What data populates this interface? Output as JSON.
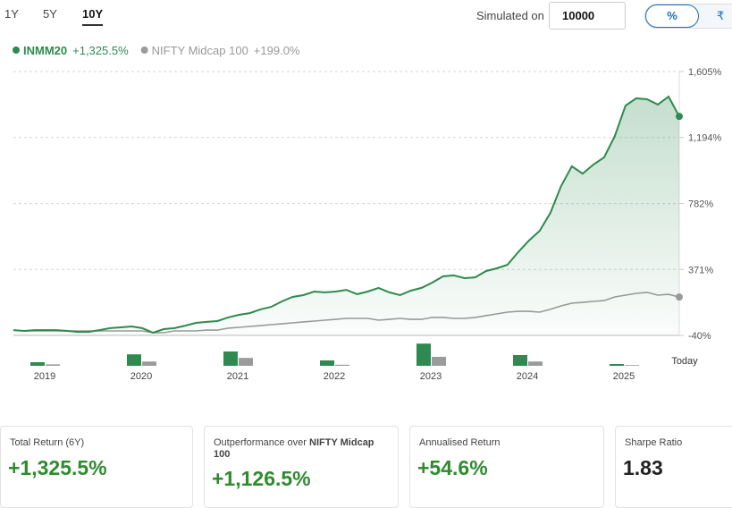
{
  "range_tabs": {
    "items": [
      "1Y",
      "5Y",
      "10Y"
    ],
    "selected": "10Y"
  },
  "simulation": {
    "label": "Simulated on",
    "amount": "10000",
    "modes": [
      "%",
      "₹"
    ],
    "selected_mode": "%"
  },
  "chart_data": [
    {
      "type": "line",
      "ylim": [
        -40,
        1605
      ],
      "yticks": [
        {
          "value": 1605,
          "label": "1,605%"
        },
        {
          "value": 1194,
          "label": "1,194%"
        },
        {
          "value": 782,
          "label": "782%"
        },
        {
          "value": 371,
          "label": "371%"
        },
        {
          "value": -40,
          "label": "-40%"
        }
      ],
      "grid": true,
      "series": [
        {
          "name": "INMM20",
          "color": "#2f8a4f",
          "value_label": "+1,325.5%",
          "area": true,
          "values": [
            -7,
            -12,
            -7,
            -7,
            -7,
            -12,
            -18,
            -18,
            -7,
            5,
            10,
            16,
            5,
            -23,
            -1,
            5,
            21,
            38,
            44,
            49,
            72,
            88,
            99,
            122,
            138,
            172,
            200,
            211,
            233,
            228,
            233,
            244,
            217,
            233,
            256,
            228,
            211,
            239,
            256,
            289,
            328,
            334,
            317,
            322,
            361,
            378,
            400,
            479,
            551,
            612,
            724,
            891,
            1014,
            969,
            1025,
            1070,
            1203,
            1393,
            1438,
            1432,
            1399,
            1449,
            1325.5
          ]
        },
        {
          "name": "NIFTY Midcap 100",
          "color": "#9b9b9b",
          "value_label": "+199.0%",
          "area": false,
          "values": [
            -7,
            -12,
            -12,
            -12,
            -12,
            -12,
            -12,
            -12,
            -12,
            -12,
            -12,
            -12,
            -12,
            -23,
            -23,
            -12,
            -12,
            -12,
            -7,
            -7,
            5,
            10,
            16,
            21,
            27,
            32,
            38,
            44,
            49,
            55,
            60,
            66,
            66,
            66,
            55,
            60,
            66,
            60,
            60,
            72,
            72,
            66,
            66,
            72,
            83,
            94,
            105,
            110,
            110,
            105,
            122,
            144,
            161,
            166,
            172,
            177,
            200,
            211,
            222,
            228,
            211,
            216,
            199
          ]
        }
      ]
    },
    {
      "type": "bar",
      "categories": [
        "2019",
        "2020",
        "2021",
        "2022",
        "2023",
        "2024",
        "2025"
      ],
      "end_label": "Today",
      "series": [
        {
          "name": "INMM20",
          "color": "#2f8a4f",
          "values": [
            10,
            32,
            40,
            15,
            62,
            30,
            5
          ]
        },
        {
          "name": "NIFTY Midcap 100",
          "color": "#9b9b9b",
          "values": [
            4,
            12,
            22,
            3,
            25,
            12,
            2
          ]
        }
      ]
    }
  ],
  "cards": [
    {
      "label": "Total Return (6Y)",
      "value": "+1,325.5%"
    },
    {
      "label": "Outperformance over",
      "label_bold": "NIFTY Midcap 100",
      "value": "+1,126.5%"
    },
    {
      "label": "Annualised Return",
      "value": "+54.6%"
    },
    {
      "label": "Sharpe Ratio",
      "value": "1.83"
    }
  ]
}
